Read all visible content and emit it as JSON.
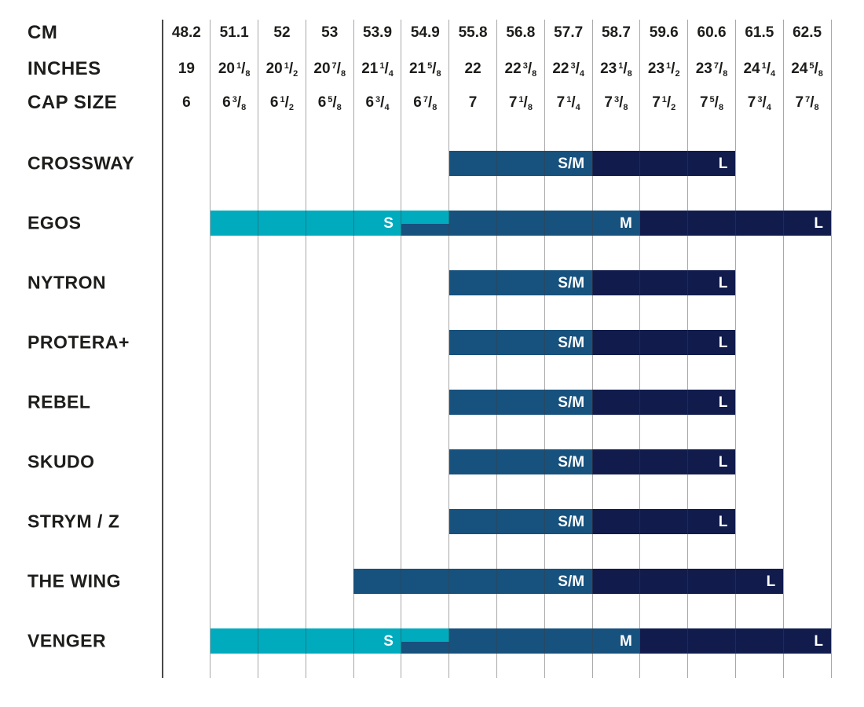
{
  "colors": {
    "cyan": "#00ABBE",
    "mid": "#17517E",
    "navy": "#111C4D",
    "text": "#1D1D1B",
    "bar_label": "#FFFFFF",
    "grid_light": "#8F8F8F",
    "grid_dark": "#3D3D3D"
  },
  "chart_data": {
    "type": "table",
    "header_rows": [
      {
        "label": "CM",
        "values": [
          "48.2",
          "51.1",
          "52",
          "53",
          "53.9",
          "54.9",
          "55.8",
          "56.8",
          "57.7",
          "58.7",
          "59.6",
          "60.6",
          "61.5",
          "62.5"
        ]
      },
      {
        "label": "INCHES",
        "values": [
          "19",
          "20 1/8",
          "20 1/2",
          "20 7/8",
          "21 1/4",
          "21 5/8",
          "22",
          "22 3/8",
          "22 3/4",
          "23 1/8",
          "23 1/2",
          "23 7/8",
          "24 1/4",
          "24 5/8"
        ]
      },
      {
        "label": "CAP SIZE",
        "values": [
          "6",
          "6 3/8",
          "6 1/2",
          "6 5/8",
          "6 3/4",
          "6 7/8",
          "7",
          "7 1/8",
          "7 1/4",
          "7 3/8",
          "7 1/2",
          "7 5/8",
          "7 3/4",
          "7 7/8"
        ]
      }
    ],
    "models": [
      {
        "name": "CROSSWAY",
        "bars": [
          {
            "label": "S/M",
            "color": "mid",
            "col_from": 6,
            "col_to": 8,
            "cm_from": "55.8",
            "cm_to": "57.7"
          },
          {
            "label": "L",
            "color": "navy",
            "col_from": 9,
            "col_to": 11,
            "cm_from": "58.7",
            "cm_to": "60.6"
          }
        ]
      },
      {
        "name": "EGOS",
        "bars": [
          {
            "label": "M",
            "color": "mid",
            "col_from": 5,
            "col_to": 9,
            "cm_from": "54.9",
            "cm_to": "58.7"
          },
          {
            "label": "S",
            "color": "cyan",
            "col_from": 1,
            "col_to": 5,
            "overlap": 1,
            "cm_from": "51.1",
            "cm_to": "54.9"
          },
          {
            "label": "L",
            "color": "navy",
            "col_from": 10,
            "col_to": 13,
            "cm_from": "59.6",
            "cm_to": "62.5"
          }
        ]
      },
      {
        "name": "NYTRON",
        "bars": [
          {
            "label": "S/M",
            "color": "mid",
            "col_from": 6,
            "col_to": 8,
            "cm_from": "55.8",
            "cm_to": "57.7"
          },
          {
            "label": "L",
            "color": "navy",
            "col_from": 9,
            "col_to": 11,
            "cm_from": "58.7",
            "cm_to": "60.6"
          }
        ]
      },
      {
        "name": "PROTERA+",
        "bars": [
          {
            "label": "S/M",
            "color": "mid",
            "col_from": 6,
            "col_to": 8,
            "cm_from": "55.8",
            "cm_to": "57.7"
          },
          {
            "label": "L",
            "color": "navy",
            "col_from": 9,
            "col_to": 11,
            "cm_from": "58.7",
            "cm_to": "60.6"
          }
        ]
      },
      {
        "name": "REBEL",
        "bars": [
          {
            "label": "S/M",
            "color": "mid",
            "col_from": 6,
            "col_to": 8,
            "cm_from": "55.8",
            "cm_to": "57.7"
          },
          {
            "label": "L",
            "color": "navy",
            "col_from": 9,
            "col_to": 11,
            "cm_from": "58.7",
            "cm_to": "60.6"
          }
        ]
      },
      {
        "name": "SKUDO",
        "bars": [
          {
            "label": "S/M",
            "color": "mid",
            "col_from": 6,
            "col_to": 8,
            "cm_from": "55.8",
            "cm_to": "57.7"
          },
          {
            "label": "L",
            "color": "navy",
            "col_from": 9,
            "col_to": 11,
            "cm_from": "58.7",
            "cm_to": "60.6"
          }
        ]
      },
      {
        "name": "STRYM / Z",
        "bars": [
          {
            "label": "S/M",
            "color": "mid",
            "col_from": 6,
            "col_to": 8,
            "cm_from": "55.8",
            "cm_to": "57.7"
          },
          {
            "label": "L",
            "color": "navy",
            "col_from": 9,
            "col_to": 11,
            "cm_from": "58.7",
            "cm_to": "60.6"
          }
        ]
      },
      {
        "name": "THE WING",
        "bars": [
          {
            "label": "S/M",
            "color": "mid",
            "col_from": 4,
            "col_to": 8,
            "cm_from": "53.9",
            "cm_to": "57.7"
          },
          {
            "label": "L",
            "color": "navy",
            "col_from": 9,
            "col_to": 12,
            "cm_from": "58.7",
            "cm_to": "61.5"
          }
        ]
      },
      {
        "name": "VENGER",
        "bars": [
          {
            "label": "M",
            "color": "mid",
            "col_from": 5,
            "col_to": 9,
            "cm_from": "54.9",
            "cm_to": "58.7"
          },
          {
            "label": "S",
            "color": "cyan",
            "col_from": 1,
            "col_to": 5,
            "overlap": 1,
            "cm_from": "51.1",
            "cm_to": "54.9"
          },
          {
            "label": "L",
            "color": "navy",
            "col_from": 10,
            "col_to": 13,
            "cm_from": "59.6",
            "cm_to": "62.5"
          }
        ]
      }
    ]
  }
}
